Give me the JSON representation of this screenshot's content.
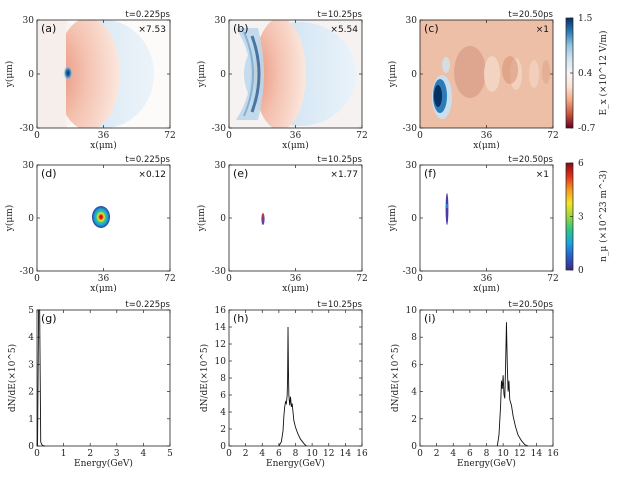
{
  "chart_data": {
    "type": "figure-grid",
    "field_row": {
      "quantity_label": "E_x (×10^12 V/m)",
      "colorbar": {
        "ticks": [
          "1.5",
          "0.4",
          "-0.7"
        ],
        "vmin": -0.7,
        "vmax": 1.5,
        "colors": [
          "#67001f",
          "#c6543f",
          "#f4a582",
          "#fbe3d6",
          "#f7f7f7",
          "#d1e5f0",
          "#92c5de",
          "#2c7bb6",
          "#053061"
        ]
      },
      "xlabel": "x(μm)",
      "ylabel": "y(μm)",
      "xlim": [
        0,
        72
      ],
      "ylim": [
        -30,
        30
      ],
      "xticks": [
        "0",
        "36",
        "72"
      ],
      "yticks": [
        "30",
        "0",
        "-30"
      ],
      "panels": [
        {
          "label": "(a)",
          "time": "t=0.225ps",
          "scale": "×7.53"
        },
        {
          "label": "(b)",
          "time": "t=10.25ps",
          "scale": "×5.54"
        },
        {
          "label": "(c)",
          "time": "t=20.50ps",
          "scale": "×1"
        }
      ]
    },
    "density_row": {
      "quantity_label": "n_μ (×10^23 m^-3)",
      "colorbar": {
        "ticks": [
          "6",
          "3",
          "0"
        ],
        "vmin": 0,
        "vmax": 6,
        "colors": [
          "#3b2b8c",
          "#2a5cc6",
          "#1aa3e0",
          "#2ec58a",
          "#9bd83a",
          "#f5e32a",
          "#f59a1f",
          "#e0321c",
          "#8b0a13"
        ]
      },
      "xlabel": "x(μm)",
      "ylabel": "y(μm)",
      "xlim": [
        0,
        72
      ],
      "ylim": [
        -30,
        30
      ],
      "xticks": [
        "0",
        "36",
        "72"
      ],
      "yticks": [
        "30",
        "0",
        "-30"
      ],
      "panels": [
        {
          "label": "(d)",
          "time": "t=0.225ps",
          "scale": "×0.12",
          "blob_center": [
            36,
            0
          ]
        },
        {
          "label": "(e)",
          "time": "t=10.25ps",
          "scale": "×1.77",
          "blob_center": [
            17,
            0
          ]
        },
        {
          "label": "(f)",
          "time": "t=20.50ps",
          "scale": "×1",
          "blob_center": [
            14,
            0
          ]
        }
      ]
    },
    "spectrum_row": {
      "type": "line",
      "xlabel": "Energy(GeV)",
      "ylabel": "dN/dE(×10^5)",
      "panels": [
        {
          "label": "(g)",
          "time": "t=0.225ps",
          "xlim": [
            0,
            5
          ],
          "ylim": [
            0,
            5
          ],
          "xticks": [
            "0",
            "1",
            "2",
            "3",
            "4",
            "5"
          ],
          "yticks": [
            "0",
            "1",
            "2",
            "3",
            "4",
            "5"
          ],
          "x": [
            0.02,
            0.06,
            0.1,
            0.14,
            0.18,
            0.22,
            0.26,
            0.3
          ],
          "y": [
            0,
            5.0,
            5.0,
            0.15,
            0.05,
            0.02,
            0,
            0
          ]
        },
        {
          "label": "(h)",
          "time": "t=10.25ps",
          "xlim": [
            0,
            16
          ],
          "ylim": [
            0,
            16
          ],
          "xticks": [
            "0",
            "2",
            "4",
            "6",
            "8",
            "10",
            "12",
            "14",
            "16"
          ],
          "yticks": [
            "0",
            "2",
            "4",
            "6",
            "8",
            "10",
            "12",
            "14",
            "16"
          ],
          "x": [
            6.0,
            6.3,
            6.5,
            6.6,
            6.7,
            6.8,
            6.9,
            7.0,
            7.05,
            7.1,
            7.15,
            7.2,
            7.3,
            7.4,
            7.5,
            7.6,
            7.8,
            8.0,
            8.3,
            8.6,
            9.0,
            9.3
          ],
          "y": [
            0,
            0.5,
            1.8,
            3.5,
            4.6,
            5.2,
            5.0,
            6.0,
            8.0,
            14.0,
            9.0,
            6.0,
            4.8,
            5.8,
            4.6,
            5.0,
            3.0,
            2.2,
            1.4,
            0.8,
            0.3,
            0
          ]
        },
        {
          "label": "(i)",
          "time": "t=20.50ps",
          "xlim": [
            0,
            16
          ],
          "ylim": [
            0,
            10
          ],
          "xticks": [
            "0",
            "2",
            "4",
            "6",
            "8",
            "10",
            "12",
            "14",
            "16"
          ],
          "yticks": [
            "0",
            "2",
            "4",
            "6",
            "8",
            "10"
          ],
          "x": [
            9.3,
            9.5,
            9.7,
            9.8,
            9.9,
            10.0,
            10.1,
            10.2,
            10.3,
            10.4,
            10.5,
            10.6,
            10.7,
            10.8,
            11.0,
            11.2,
            11.5,
            11.8,
            12.2,
            12.6,
            13.0
          ],
          "y": [
            0,
            0.8,
            3.0,
            4.8,
            4.2,
            5.2,
            3.8,
            3.5,
            6.0,
            9.1,
            6.0,
            4.0,
            4.8,
            3.4,
            3.0,
            2.2,
            1.4,
            0.8,
            0.4,
            0.1,
            0
          ]
        }
      ]
    }
  }
}
